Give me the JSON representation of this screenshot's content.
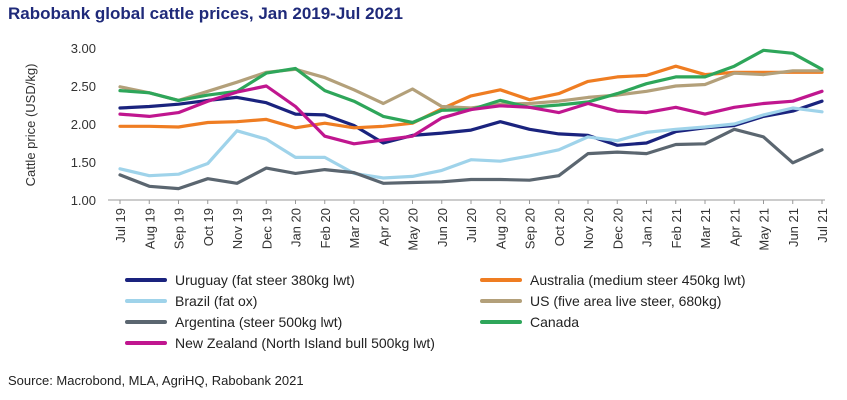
{
  "title": "Rabobank global cattle prices, Jan 2019-Jul 2021",
  "source": "Source: Macrobond, MLA, AgriHQ, Rabobank 2021",
  "chart_data": {
    "type": "line",
    "title": "Rabobank global cattle prices, Jan 2019-Jul 2021",
    "ylabel": "Cattle price (USD/kg)",
    "xlabel": "",
    "ylim": [
      1.0,
      3.0
    ],
    "yticks": [
      "1.00",
      "1.50",
      "2.00",
      "2.50",
      "3.00"
    ],
    "grid": false,
    "legend_position": "bottom",
    "categories": [
      "Jul 19",
      "Aug 19",
      "Sep 19",
      "Oct 19",
      "Nov 19",
      "Dec 19",
      "Jan 20",
      "Feb 20",
      "Mar 20",
      "Apr 20",
      "May 20",
      "Jun 20",
      "Jul 20",
      "Aug 20",
      "Sep 20",
      "Oct 20",
      "Nov 20",
      "Dec 20",
      "Jan 21",
      "Feb 21",
      "Mar 21",
      "Apr 21",
      "May 21",
      "Jun 21",
      "Jul 21"
    ],
    "series": [
      {
        "name": "Uruguay (fat steer 380kg lwt)",
        "color": "#1a237e",
        "values": [
          2.21,
          2.23,
          2.26,
          2.31,
          2.35,
          2.28,
          2.13,
          2.12,
          1.98,
          1.75,
          1.85,
          1.88,
          1.92,
          2.03,
          1.93,
          1.87,
          1.85,
          1.72,
          1.75,
          1.9,
          1.95,
          1.98,
          2.1,
          2.17,
          2.3
        ]
      },
      {
        "name": "Australia (medium steer 450kg lwt)",
        "color": "#ef7d22",
        "values": [
          1.97,
          1.97,
          1.96,
          2.02,
          2.03,
          2.06,
          1.95,
          2.01,
          1.95,
          1.97,
          2.01,
          2.2,
          2.37,
          2.45,
          2.32,
          2.4,
          2.56,
          2.62,
          2.64,
          2.76,
          2.65,
          2.68,
          2.68,
          2.68,
          2.68
        ]
      },
      {
        "name": "Brazil (fat ox)",
        "color": "#9fd3ea",
        "values": [
          1.41,
          1.32,
          1.34,
          1.48,
          1.91,
          1.8,
          1.56,
          1.56,
          1.35,
          1.29,
          1.31,
          1.39,
          1.53,
          1.51,
          1.58,
          1.66,
          1.83,
          1.78,
          1.89,
          1.93,
          1.96,
          2.0,
          2.12,
          2.21,
          2.16
        ]
      },
      {
        "name": "US (five area live steer, 680kg)",
        "color": "#b3a07a",
        "values": [
          2.49,
          2.41,
          2.31,
          2.43,
          2.55,
          2.68,
          2.72,
          2.61,
          2.45,
          2.27,
          2.46,
          2.23,
          2.21,
          2.26,
          2.27,
          2.3,
          2.35,
          2.38,
          2.43,
          2.5,
          2.52,
          2.67,
          2.65,
          2.7,
          2.7
        ]
      },
      {
        "name": "Argentina (steer 500kg lwt)",
        "color": "#5b6670",
        "values": [
          1.33,
          1.18,
          1.15,
          1.28,
          1.22,
          1.42,
          1.35,
          1.4,
          1.36,
          1.22,
          1.23,
          1.24,
          1.27,
          1.27,
          1.26,
          1.32,
          1.61,
          1.63,
          1.61,
          1.73,
          1.74,
          1.93,
          1.83,
          1.49,
          1.66
        ]
      },
      {
        "name": "Canada",
        "color": "#2ea65a",
        "values": [
          2.44,
          2.41,
          2.31,
          2.38,
          2.43,
          2.67,
          2.73,
          2.44,
          2.3,
          2.1,
          2.02,
          2.18,
          2.19,
          2.31,
          2.22,
          2.25,
          2.29,
          2.4,
          2.53,
          2.62,
          2.62,
          2.76,
          2.97,
          2.93,
          2.72
        ]
      },
      {
        "name": "New Zealand (North Island bull 500kg lwt)",
        "color": "#c0168f",
        "values": [
          2.13,
          2.1,
          2.15,
          2.3,
          2.42,
          2.5,
          2.23,
          1.84,
          1.74,
          1.79,
          1.84,
          2.08,
          2.19,
          2.24,
          2.22,
          2.15,
          2.27,
          2.17,
          2.15,
          2.22,
          2.13,
          2.22,
          2.27,
          2.3,
          2.43
        ]
      }
    ]
  }
}
